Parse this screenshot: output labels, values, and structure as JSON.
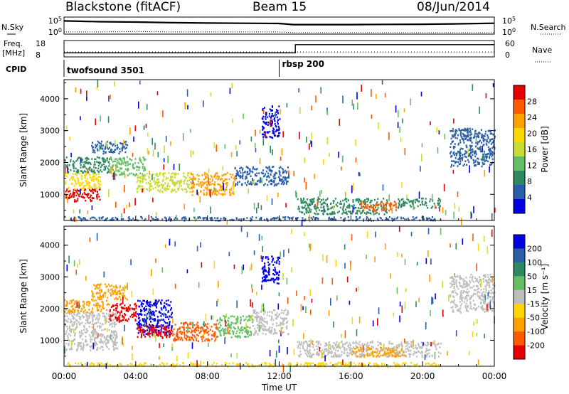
{
  "header": {
    "station": "Blackstone (fitACF)",
    "beam": "Beam 15",
    "date": "08/Jun/2014"
  },
  "colors": {
    "scale": [
      "#e60000",
      "#ff5a00",
      "#ffa000",
      "#ffd700",
      "#c8dc32",
      "#64be64",
      "#2d8a60",
      "#2a5fa8",
      "#0000e0"
    ],
    "ground_scatter": "#bdbdbd",
    "axis": "#000000"
  },
  "chart_data": [
    {
      "type": "line",
      "panel": "sky-noise",
      "ylabel_left": "N.Sky",
      "ylabel_right": "N.Search",
      "left_ticks": [
        "10^5",
        "10^0"
      ],
      "right_ticks": [
        "10^5",
        "10^0"
      ],
      "x": [
        0,
        2,
        4,
        6,
        8,
        10,
        12,
        12.8,
        14,
        16,
        18,
        20,
        22,
        24
      ],
      "series": [
        {
          "values": [
            40000,
            20000,
            15000,
            8000,
            6000,
            5000,
            4000,
            1500,
            1500,
            1500,
            1800,
            2000,
            3000,
            5000
          ]
        },
        {
          "values": [
            2,
            2,
            3,
            2,
            2,
            2,
            2,
            1,
            1,
            1,
            1,
            1,
            1,
            1
          ]
        }
      ]
    },
    {
      "type": "line",
      "panel": "frequency-nave",
      "ylabel_left": "Freq.",
      "ylabel_left_unit": "[MHz]",
      "ylabel_right": "Nave",
      "left_ticks": [
        "18",
        "8"
      ],
      "right_ticks": [
        "60",
        "0"
      ],
      "x": [
        0,
        12.9,
        12.9,
        24
      ],
      "series": [
        {
          "values": [
            10.5,
            10.5,
            15.5,
            15.5
          ]
        },
        {
          "values": [
            18,
            18,
            18,
            18
          ]
        }
      ]
    },
    {
      "type": "table",
      "panel": "cpid",
      "label": "CPID",
      "segments": [
        {
          "start": 0,
          "end": 12.0,
          "name": "twofsound 3501"
        },
        {
          "start": 12.0,
          "end": 24,
          "name": "rbsp 200"
        }
      ]
    },
    {
      "type": "heatmap",
      "panel": "power",
      "ylabel": "Slant Range [km]",
      "ylim": [
        180,
        4600
      ],
      "yticks": [
        1000,
        2000,
        3000,
        4000
      ],
      "xlim": [
        0,
        24
      ],
      "colorbar_label": "Power [dB]",
      "colorbar_ticks": [
        "28",
        "24",
        "20",
        "16",
        "12",
        "8",
        "4"
      ],
      "regions": [
        {
          "t0": 0.0,
          "t1": 2.0,
          "r0": 800,
          "r1": 1200,
          "level": 0
        },
        {
          "t0": 0.0,
          "t1": 2.0,
          "r0": 1200,
          "r1": 1700,
          "level": 3
        },
        {
          "t0": 0.0,
          "t1": 2.5,
          "r0": 1700,
          "r1": 2200,
          "level": 6
        },
        {
          "t0": 1.5,
          "t1": 3.5,
          "r0": 2300,
          "r1": 2700,
          "level": 7
        },
        {
          "t0": 2.5,
          "t1": 4.5,
          "r0": 1600,
          "r1": 2200,
          "level": 5
        },
        {
          "t0": 4.0,
          "t1": 7.0,
          "r0": 1100,
          "r1": 1700,
          "level": 4
        },
        {
          "t0": 7.0,
          "t1": 9.5,
          "r0": 1000,
          "r1": 1700,
          "level": 2
        },
        {
          "t0": 9.5,
          "t1": 12.5,
          "r0": 1300,
          "r1": 1900,
          "level": 7
        },
        {
          "t0": 11.0,
          "t1": 12.0,
          "r0": 2800,
          "r1": 3800,
          "level": 8
        },
        {
          "t0": 13.0,
          "t1": 18.0,
          "r0": 400,
          "r1": 900,
          "level": 6
        },
        {
          "t0": 16.5,
          "t1": 18.5,
          "r0": 500,
          "r1": 800,
          "level": 1
        },
        {
          "t0": 18.5,
          "t1": 21.0,
          "r0": 600,
          "r1": 900,
          "level": 6
        },
        {
          "t0": 0.0,
          "t1": 21.0,
          "r0": 200,
          "r1": 320,
          "level": 7
        },
        {
          "t0": 21.5,
          "t1": 24.0,
          "r0": 1900,
          "r1": 3100,
          "level": 7
        }
      ]
    },
    {
      "type": "heatmap",
      "panel": "velocity",
      "ylabel": "Slant Range [km]",
      "ylim": [
        180,
        4600
      ],
      "yticks": [
        1000,
        2000,
        3000,
        4000
      ],
      "xlim": [
        0,
        24
      ],
      "xticks": [
        "00:00",
        "04:00",
        "08:00",
        "12:00",
        "16:00",
        "20:00",
        "00:00"
      ],
      "xlabel": "Time UT",
      "colorbar_label": "Velocity [m s⁻¹]",
      "colorbar_ticks": [
        "200",
        "100",
        "50",
        "15",
        "-15",
        "-50",
        "-100",
        "-200"
      ],
      "regions": [
        {
          "t0": 0.0,
          "t1": 3.0,
          "r0": 700,
          "r1": 1900,
          "level": "ground"
        },
        {
          "t0": 0.0,
          "t1": 2.5,
          "r0": 1900,
          "r1": 2300,
          "level": 2
        },
        {
          "t0": 1.5,
          "t1": 3.5,
          "r0": 2300,
          "r1": 2800,
          "level": 2
        },
        {
          "t0": 2.5,
          "t1": 4.0,
          "r0": 1600,
          "r1": 2200,
          "level": 0
        },
        {
          "t0": 4.0,
          "t1": 6.0,
          "r0": 1200,
          "r1": 2300,
          "level": 8
        },
        {
          "t0": 4.0,
          "t1": 6.0,
          "r0": 1100,
          "r1": 1500,
          "level": 0
        },
        {
          "t0": 6.0,
          "t1": 8.5,
          "r0": 1000,
          "r1": 1600,
          "level": 1
        },
        {
          "t0": 8.5,
          "t1": 10.5,
          "r0": 1100,
          "r1": 1800,
          "level": 5
        },
        {
          "t0": 10.5,
          "t1": 12.5,
          "r0": 1200,
          "r1": 2000,
          "level": "ground"
        },
        {
          "t0": 11.0,
          "t1": 12.0,
          "r0": 2800,
          "r1": 3700,
          "level": 8
        },
        {
          "t0": 13.0,
          "t1": 21.0,
          "r0": 500,
          "r1": 1000,
          "level": "ground"
        },
        {
          "t0": 16.0,
          "t1": 19.0,
          "r0": 500,
          "r1": 800,
          "level": 2
        },
        {
          "t0": 0.0,
          "t1": 21.0,
          "r0": 200,
          "r1": 320,
          "level": 3
        },
        {
          "t0": 21.5,
          "t1": 24.0,
          "r0": 1900,
          "r1": 3100,
          "level": "ground"
        }
      ]
    }
  ]
}
